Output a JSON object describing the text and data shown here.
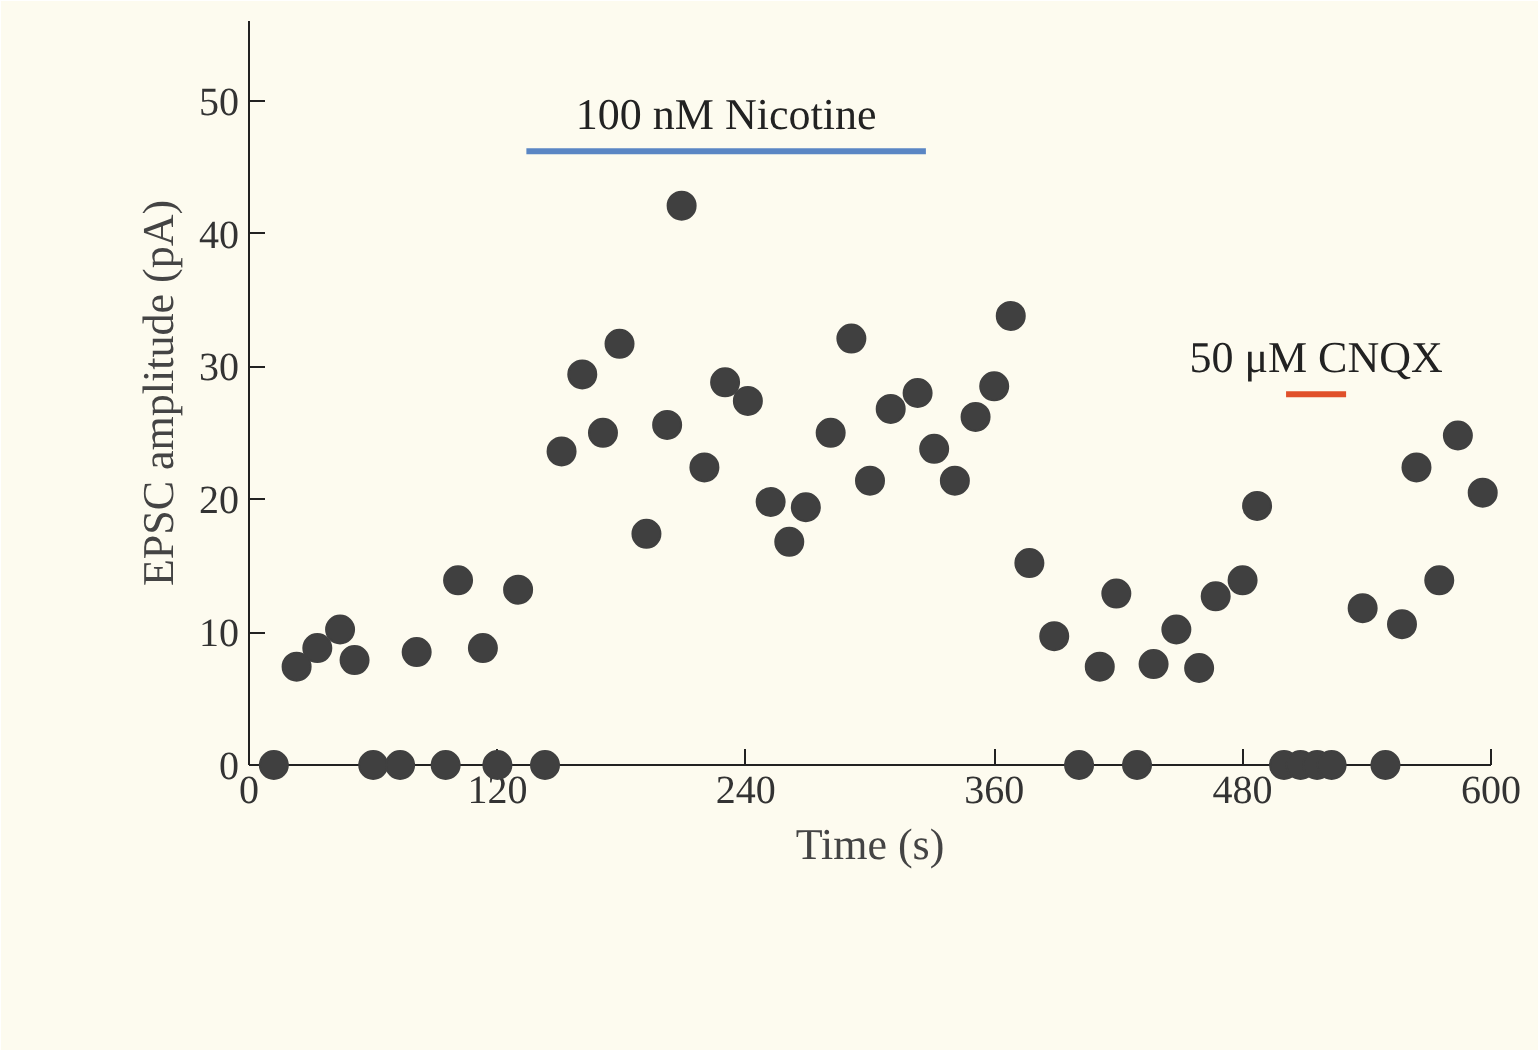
{
  "chart_data": {
    "type": "scatter",
    "xlabel": "Time (s)",
    "ylabel": "EPSC amplitude (pA)",
    "xlim": [
      0,
      600
    ],
    "ylim": [
      0,
      56
    ],
    "xticks": [
      0,
      120,
      240,
      360,
      480,
      600
    ],
    "yticks": [
      0,
      10,
      20,
      30,
      40,
      50
    ],
    "grid": false,
    "marker": "circle",
    "series": [
      {
        "color": "#404040",
        "x": [
          12,
          23,
          33,
          44,
          51,
          60,
          73,
          81,
          95,
          101,
          113,
          120,
          130,
          143,
          151,
          161,
          171,
          179,
          192,
          202,
          209,
          220,
          230,
          241,
          252,
          261,
          269,
          281,
          291,
          300,
          310,
          323,
          331,
          341,
          351,
          360,
          368,
          377,
          389,
          401,
          411,
          419,
          429,
          437,
          448,
          459,
          467,
          480,
          487,
          500,
          508,
          516,
          523,
          538,
          549,
          557,
          564,
          575,
          584,
          596
        ],
        "values": [
          0,
          7.4,
          8.8,
          10.2,
          7.9,
          0,
          0,
          8.5,
          0,
          13.9,
          8.8,
          0,
          13.2,
          0,
          23.6,
          29.4,
          25,
          31.7,
          17.4,
          25.6,
          42.1,
          22.4,
          28.8,
          27.4,
          19.8,
          16.8,
          19.4,
          25,
          32.1,
          21.4,
          26.8,
          28,
          23.8,
          21.4,
          26.2,
          28.5,
          33.8,
          15.2,
          9.7,
          0,
          7.4,
          12.9,
          0,
          7.6,
          10.2,
          7.3,
          12.7,
          13.9,
          19.5,
          0,
          0,
          0,
          0,
          11.8,
          0,
          10.6,
          22.4,
          13.9,
          24.8,
          20.5
        ]
      },
      {
        "type": "line",
        "color": "#5a86c4",
        "x": [
          134,
          327
        ],
        "values": [
          46.2,
          46.2
        ],
        "marker": "none"
      },
      {
        "type": "line",
        "color": "#e0502a",
        "x": [
          501,
          530
        ],
        "values": [
          27.9,
          27.9
        ],
        "marker": "none"
      }
    ],
    "annotations": [
      {
        "text": "100 nM Nicotine",
        "x": 230.5,
        "y": 46.2
      },
      {
        "text": "50 μM CNQX",
        "x": 515.5,
        "y": 27.9
      }
    ]
  }
}
